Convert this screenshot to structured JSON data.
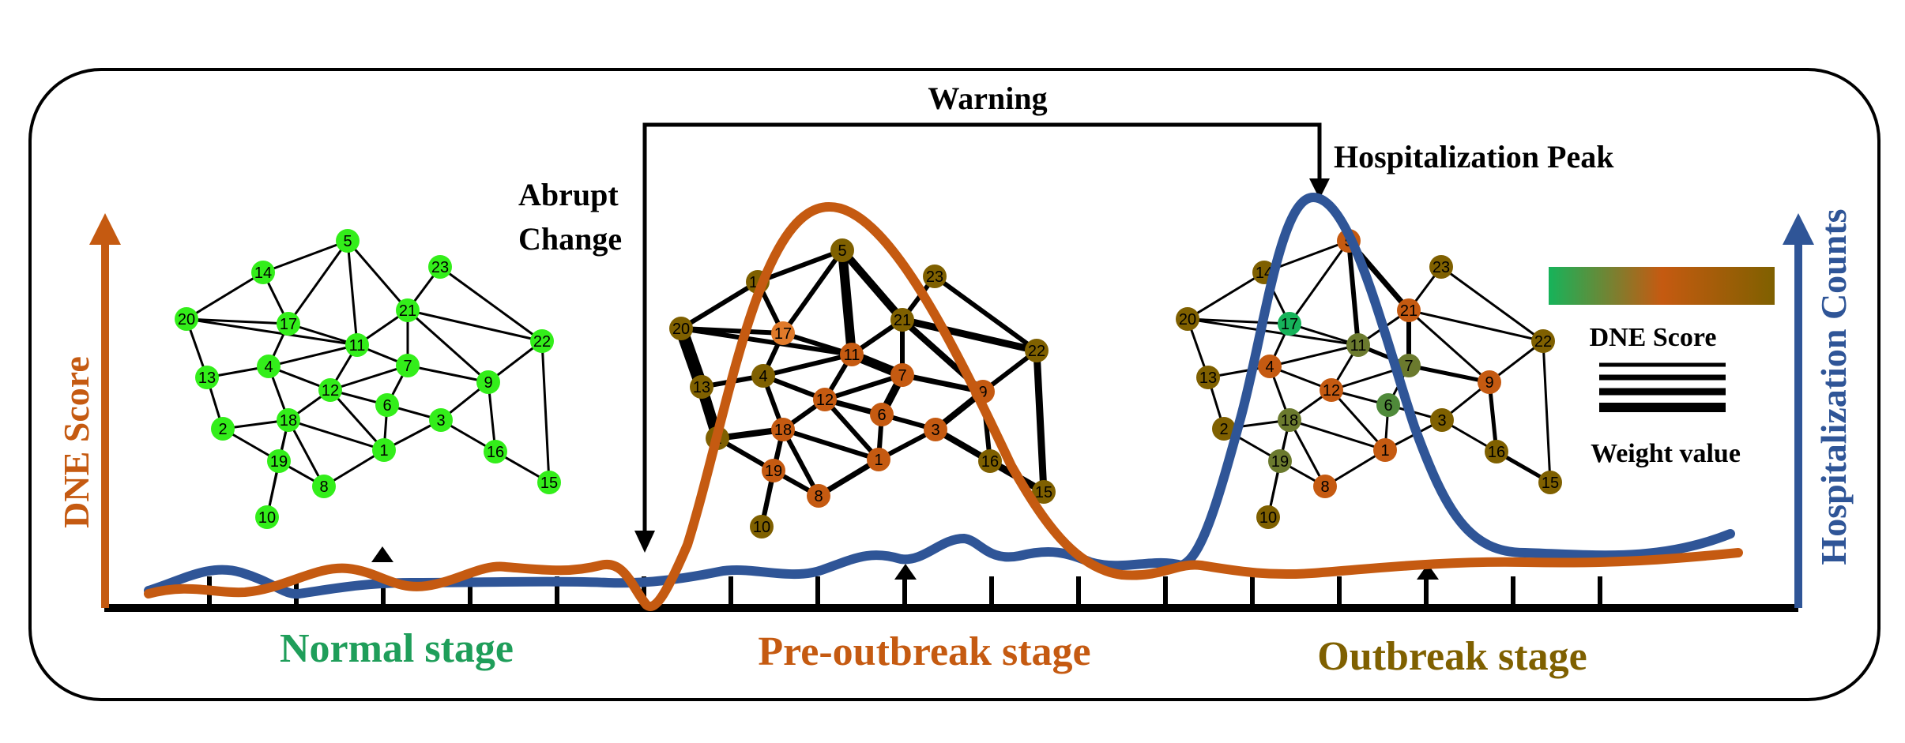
{
  "labels": {
    "warning": "Warning",
    "hospitalization_peak": "Hospitalization Peak",
    "abrupt_line1": "Abrupt",
    "abrupt_line2": "Change",
    "y_left": "DNE Score",
    "y_right": "Hospitalization Counts",
    "stage_normal": "Normal stage",
    "stage_pre": "Pre-outbreak stage",
    "stage_outbreak": "Outbreak stage",
    "legend_colorbar": "DNE Score",
    "legend_weight": "Weight value"
  },
  "colors": {
    "dne": "#c55a11",
    "hosp": "#2f5597",
    "normal": "#1f9e5a",
    "pre": "#c55a11",
    "outbreak": "#7f6000",
    "node_normal": "#33ee1a",
    "gradient": [
      "#16b35a",
      "#c55a11",
      "#7f6000"
    ]
  },
  "network": {
    "nodes": [
      "1",
      "2",
      "3",
      "4",
      "5",
      "6",
      "7",
      "8",
      "9",
      "10",
      "11",
      "12",
      "13",
      "14",
      "15",
      "16",
      "17",
      "18",
      "19",
      "20",
      "21",
      "22",
      "23"
    ],
    "pre_colors": {
      "1": "#c55a11",
      "2": "#7f6000",
      "3": "#c55a11",
      "4": "#7f6000",
      "5": "#7f6000",
      "6": "#c55a11",
      "7": "#c55a11",
      "8": "#c55a11",
      "9": "#c55a11",
      "10": "#7f6000",
      "11": "#c55a11",
      "12": "#c55a11",
      "13": "#7f6000",
      "14": "#7f6000",
      "15": "#7f6000",
      "16": "#7f6000",
      "17": "#e07a2a",
      "18": "#c55a11",
      "19": "#c55a11",
      "20": "#7f6000",
      "21": "#7f6000",
      "22": "#7f6000",
      "23": "#7f6000"
    },
    "outbreak_colors": {
      "1": "#c55a11",
      "2": "#7f6000",
      "3": "#7f6000",
      "4": "#c55a11",
      "5": "#c55a11",
      "6": "#4f8a3a",
      "7": "#6b7a2e",
      "8": "#c55a11",
      "9": "#c55a11",
      "10": "#7f6000",
      "11": "#6b7a2e",
      "12": "#c55a11",
      "13": "#7f6000",
      "14": "#7f6000",
      "15": "#7f6000",
      "16": "#7f6000",
      "17": "#16b35a",
      "18": "#6b7a2e",
      "19": "#6b7a2e",
      "20": "#7f6000",
      "21": "#c55a11",
      "22": "#7f6000",
      "23": "#7f6000"
    }
  }
}
